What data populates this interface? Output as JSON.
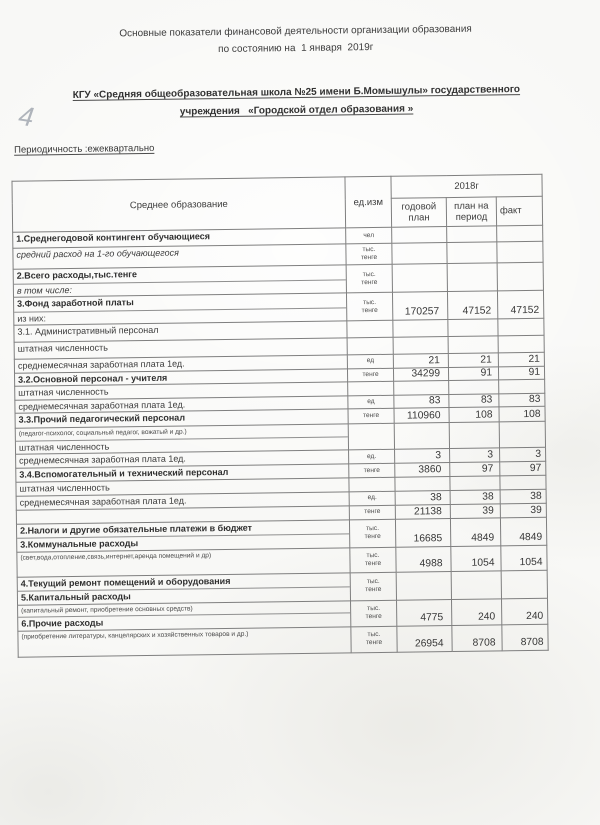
{
  "header": {
    "title_line1": "Основные показатели финансовой деятельности организации образования",
    "title_line2": "по состоянию на  1 января  2019г",
    "org_line1": "КГУ «Средняя общеобразовательная школа №25 имени Б.Момышулы» государственного",
    "org_line2": "учреждения   «Городской отдел образования »",
    "periodicity": "Периодичность :ежеквартально",
    "handwritten_mark": "4"
  },
  "colors": {
    "paper": "#f8f8f6",
    "ink": "#3a3a3a",
    "table_border": "#7f7f7f",
    "pencil_mark": "#a3a9b1"
  },
  "table": {
    "header": {
      "col_main": "Среднее образование",
      "col_unit": "ед.изм",
      "year_group": "2018г",
      "col_plan_year": "годовой\nплан",
      "col_plan_period": "план на\nпериод",
      "col_fact": "факт"
    },
    "rows": [
      {
        "label": "1.Среднегодовой контингент обучающиеся",
        "style": "bold",
        "unit": "чел",
        "values": [
          "",
          "",
          ""
        ]
      },
      {
        "label": "средний расход на 1-го обучающегося",
        "style": "italic",
        "unit": "тыс.\nтенге",
        "values": [
          "",
          "",
          ""
        ]
      },
      {
        "label": "2.Всего расходы,тыс.тенге",
        "style": "bold",
        "label2": "в том числе:",
        "style2": "italic",
        "unit": "тыс.\nтенге",
        "values": [
          "",
          "",
          ""
        ]
      },
      {
        "label": "3.Фонд заработной платы",
        "style": "bold",
        "label2": "из них:",
        "style2": "normal",
        "unit": "тыс.\nтенге",
        "values": [
          "170257",
          "47152",
          "47152"
        ]
      },
      {
        "label": "3.1. Административный персонал",
        "style": "normal",
        "unit": "",
        "values": [
          "",
          "",
          ""
        ]
      },
      {
        "label": "штатная численность",
        "style": "normal",
        "unit": "",
        "values": [
          "",
          "",
          ""
        ]
      },
      {
        "label": "среднемесячная заработная плата 1ед.",
        "style": "normal",
        "unit": "ед",
        "values": [
          "21",
          "21",
          "21"
        ]
      },
      {
        "label": "3.2.Основной персонал - учителя",
        "style": "bold",
        "unit": "тенге",
        "values": [
          "34299",
          "91",
          "91"
        ]
      },
      {
        "label": "штатная численность",
        "style": "normal",
        "unit": "",
        "values": [
          "",
          "",
          ""
        ]
      },
      {
        "label": "среднемесячная заработная плата 1ед.",
        "style": "normal",
        "unit": "ед",
        "values": [
          "83",
          "83",
          "83"
        ]
      },
      {
        "label": "3.3.Прочий педагогический персонал",
        "style": "bold",
        "unit": "тенге",
        "values": [
          "110960",
          "108",
          "108"
        ]
      },
      {
        "label": "(педагог-психолог, социальный педагог, вожатый и др.)",
        "style": "small",
        "label2": "штатная численность",
        "style2": "normal",
        "unit": "",
        "values": [
          "",
          "",
          ""
        ]
      },
      {
        "label": "среднемесячная заработная плата 1ед.",
        "style": "normal",
        "unit": "ед.",
        "values": [
          "3",
          "3",
          "3"
        ]
      },
      {
        "label": "3.4.Вспомогательный и технический персонал",
        "style": "bold",
        "unit": "тенге",
        "values": [
          "3860",
          "97",
          "97"
        ]
      },
      {
        "label": "штатная численность",
        "style": "normal",
        "unit": "",
        "values": [
          "",
          "",
          ""
        ]
      },
      {
        "label": "среднемесячная заработная плата 1ед.",
        "style": "normal",
        "unit": "ед.",
        "values": [
          "38",
          "38",
          "38"
        ]
      },
      {
        "label": "",
        "style": "normal",
        "unit": "тенге",
        "values": [
          "21138",
          "39",
          "39"
        ]
      },
      {
        "label": "2.Налоги и другие обязательные платежи в бюджет",
        "style": "bold",
        "label2": "3.Коммунальные расходы",
        "style2": "bold",
        "unit": "тыс.\nтенге",
        "values": [
          "16685",
          "4849",
          "4849"
        ]
      },
      {
        "label": "(свет,вода,отопление,связь,интернет,аренда помещений и др)",
        "style": "small",
        "unit": "тыс.\nтенге",
        "values": [
          "4988",
          "1054",
          "1054"
        ]
      },
      {
        "label": "4.Текущий ремонт помещений и оборудования",
        "style": "bold",
        "label2": "5.Капитальный расходы",
        "style2": "bold",
        "unit": "тыс.\nтенге",
        "values": [
          "",
          "",
          ""
        ]
      },
      {
        "label": "(капитальный ремонт, приобретение основных средств)",
        "style": "small",
        "label2": "6.Прочие расходы",
        "style2": "bold",
        "unit": "тыс.\nтенге",
        "values": [
          "4775",
          "240",
          "240"
        ]
      },
      {
        "label": "(приобретение литературы, канцелярских и хозяйственных товаров и др.)",
        "style": "small",
        "unit": "тыс.\nтенге",
        "values": [
          "26954",
          "8708",
          "8708"
        ]
      }
    ]
  }
}
